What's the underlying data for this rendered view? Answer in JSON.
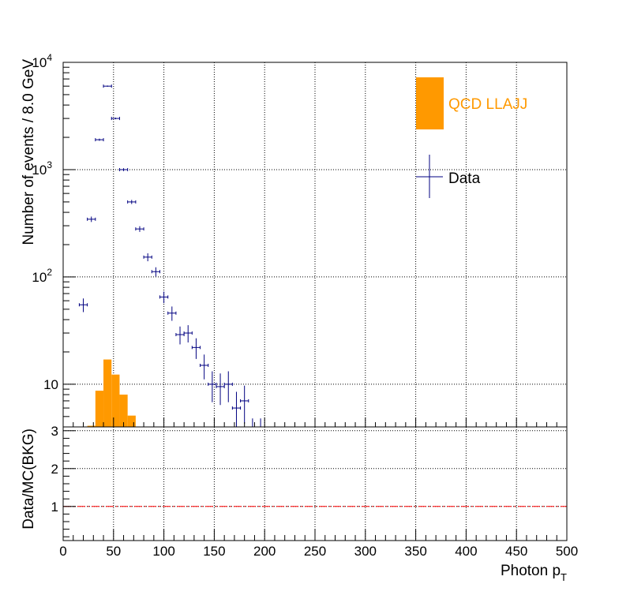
{
  "chart_data": [
    {
      "type": "bar",
      "panel": "main",
      "xlabel": "Photon p",
      "xlabel_sub": "T",
      "ylabel": "Number of events / 8.0 GeV",
      "xlim": [
        0,
        500
      ],
      "ylim": [
        4,
        10000
      ],
      "yscale": "log",
      "grid": true,
      "bin_width": 8,
      "y_ticks": [
        {
          "value": 10,
          "base": "10",
          "exp": ""
        },
        {
          "value": 100,
          "base": "10",
          "exp": "2"
        },
        {
          "value": 1000,
          "base": "10",
          "exp": "3"
        },
        {
          "value": 10000,
          "base": "10",
          "exp": "4"
        }
      ],
      "legend": {
        "position": "top-right",
        "entries": [
          {
            "label": "QCD LLAJJ",
            "style": "fill"
          },
          {
            "label": "Data",
            "style": "errorbar"
          }
        ]
      },
      "series": [
        {
          "name": "QCD LLAJJ",
          "kind": "stacked-histogram",
          "color": "#ff9900",
          "bins": [
            {
              "x0": 24,
              "x1": 32,
              "y": 4.1
            },
            {
              "x0": 32,
              "x1": 40,
              "y": 8.7
            },
            {
              "x0": 40,
              "x1": 48,
              "y": 17
            },
            {
              "x0": 48,
              "x1": 56,
              "y": 12.3
            },
            {
              "x0": 56,
              "x1": 64,
              "y": 8.0
            },
            {
              "x0": 64,
              "x1": 72,
              "y": 5.1
            }
          ]
        },
        {
          "name": "Data",
          "kind": "points",
          "color": "#000080",
          "points": [
            {
              "x": 20,
              "y": 55,
              "err": 8
            },
            {
              "x": 28,
              "y": 345,
              "err": 20
            },
            {
              "x": 36,
              "y": 1900,
              "err": 45
            },
            {
              "x": 44,
              "y": 6000,
              "err": 80
            },
            {
              "x": 52,
              "y": 3000,
              "err": 55
            },
            {
              "x": 60,
              "y": 1000,
              "err": 32
            },
            {
              "x": 68,
              "y": 500,
              "err": 22
            },
            {
              "x": 76,
              "y": 280,
              "err": 17
            },
            {
              "x": 84,
              "y": 153,
              "err": 13
            },
            {
              "x": 92,
              "y": 112,
              "err": 11
            },
            {
              "x": 100,
              "y": 65,
              "err": 8
            },
            {
              "x": 108,
              "y": 46,
              "err": 7
            },
            {
              "x": 116,
              "y": 29,
              "err": 5.5
            },
            {
              "x": 124,
              "y": 30,
              "err": 5.5
            },
            {
              "x": 132,
              "y": 22,
              "err": 4.8
            },
            {
              "x": 140,
              "y": 15,
              "err": 3.9
            },
            {
              "x": 148,
              "y": 10,
              "err": 3.2
            },
            {
              "x": 156,
              "y": 9.5,
              "err": 3.1
            },
            {
              "x": 164,
              "y": 10,
              "err": 3.2
            },
            {
              "x": 172,
              "y": 6,
              "err": 2.5
            },
            {
              "x": 180,
              "y": 7,
              "err": 2.7
            },
            {
              "x": 188,
              "y": 3,
              "err": 1.8
            },
            {
              "x": 196,
              "y": 3,
              "err": 1.8
            }
          ]
        }
      ]
    },
    {
      "type": "line",
      "panel": "ratio",
      "xlabel": "Photon p",
      "xlabel_sub": "T",
      "ylabel": "Data/MC(BKG)",
      "xlim": [
        0,
        500
      ],
      "ylim": [
        0.1,
        3.1
      ],
      "grid": true,
      "x_ticks": [
        0,
        50,
        100,
        150,
        200,
        250,
        300,
        350,
        400,
        450,
        500
      ],
      "y_ticks": [
        1,
        2,
        3
      ],
      "series": [
        {
          "kind": "reference-line",
          "y": 1,
          "color": "#ff0000"
        }
      ]
    }
  ]
}
